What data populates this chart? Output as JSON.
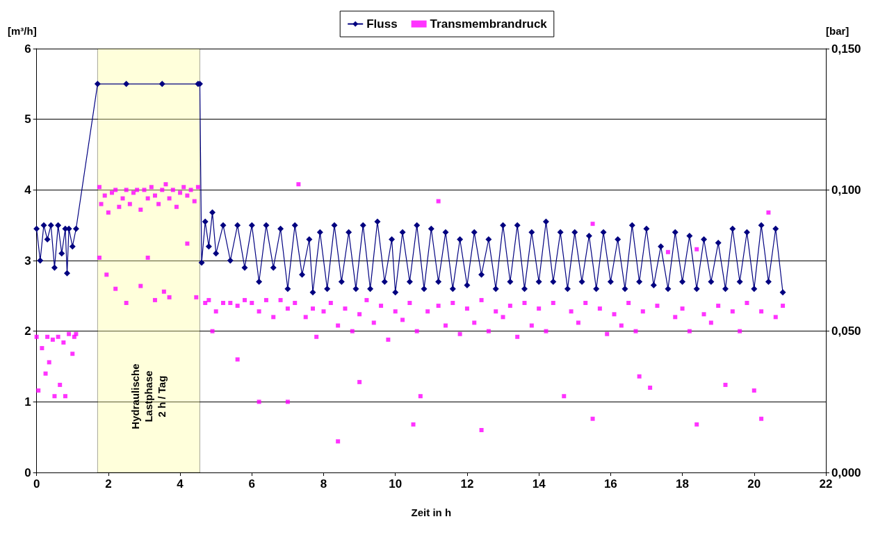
{
  "chart_data": {
    "type": "line",
    "xlabel": "Zeit in h",
    "ylabel": "[m³/h]",
    "y2label": "[bar]",
    "xlim": [
      0,
      22
    ],
    "xticks": [
      0,
      2,
      4,
      6,
      8,
      10,
      12,
      14,
      16,
      18,
      20,
      22
    ],
    "ylim": [
      0,
      6
    ],
    "yticks": [
      0,
      1,
      2,
      3,
      4,
      5,
      6
    ],
    "y2lim": [
      0,
      0.15
    ],
    "y2ticks": [
      {
        "value": 0,
        "label": "0,000"
      },
      {
        "value": 0.05,
        "label": "0,050"
      },
      {
        "value": 0.1,
        "label": "0,100"
      },
      {
        "value": 0.15,
        "label": "0,150"
      }
    ],
    "grid": "y",
    "legend": "top",
    "bands": [
      {
        "axis": "x",
        "from": 1.7,
        "to": 4.55,
        "label": "Hydraulische\nLastphase\n2 h / Tag",
        "color": "#ffff99"
      }
    ],
    "series": [
      {
        "name": "Fluss",
        "color": "#000080",
        "marker": "diamond",
        "x": [
          0,
          0.1,
          0.2,
          0.3,
          0.4,
          0.5,
          0.6,
          0.7,
          0.8,
          0.85,
          0.9,
          1.0,
          1.1,
          1.7,
          2.5,
          3.5,
          4.5,
          4.55,
          4.6,
          4.7,
          4.8,
          4.9,
          5.0,
          5.2,
          5.4,
          5.6,
          5.8,
          6.0,
          6.2,
          6.4,
          6.6,
          6.8,
          7.0,
          7.2,
          7.4,
          7.6,
          7.7,
          7.9,
          8.1,
          8.3,
          8.5,
          8.7,
          8.9,
          9.1,
          9.3,
          9.5,
          9.7,
          9.9,
          10.0,
          10.2,
          10.4,
          10.6,
          10.8,
          11.0,
          11.2,
          11.4,
          11.6,
          11.8,
          12.0,
          12.2,
          12.4,
          12.6,
          12.8,
          13.0,
          13.2,
          13.4,
          13.6,
          13.8,
          14.0,
          14.2,
          14.4,
          14.6,
          14.8,
          15.0,
          15.2,
          15.4,
          15.6,
          15.8,
          16.0,
          16.2,
          16.4,
          16.6,
          16.8,
          17.0,
          17.2,
          17.4,
          17.6,
          17.8,
          18.0,
          18.2,
          18.4,
          18.6,
          18.8,
          19.0,
          19.2,
          19.4,
          19.6,
          19.8,
          20.0,
          20.2,
          20.4,
          20.6,
          20.8
        ],
        "values": [
          3.45,
          3.0,
          3.5,
          3.3,
          3.5,
          2.9,
          3.5,
          3.1,
          3.45,
          2.82,
          3.45,
          3.2,
          3.45,
          5.5,
          5.5,
          5.5,
          5.5,
          5.5,
          2.97,
          3.55,
          3.2,
          3.68,
          3.1,
          3.5,
          3.0,
          3.5,
          2.9,
          3.5,
          2.7,
          3.5,
          2.9,
          3.45,
          2.6,
          3.5,
          2.8,
          3.3,
          2.55,
          3.4,
          2.6,
          3.5,
          2.7,
          3.4,
          2.6,
          3.5,
          2.6,
          3.55,
          2.7,
          3.3,
          2.55,
          3.4,
          2.7,
          3.5,
          2.6,
          3.45,
          2.7,
          3.4,
          2.6,
          3.3,
          2.65,
          3.4,
          2.8,
          3.3,
          2.6,
          3.5,
          2.7,
          3.5,
          2.6,
          3.4,
          2.7,
          3.55,
          2.7,
          3.4,
          2.6,
          3.4,
          2.7,
          3.35,
          2.6,
          3.4,
          2.7,
          3.3,
          2.6,
          3.5,
          2.7,
          3.45,
          2.65,
          3.2,
          2.6,
          3.4,
          2.7,
          3.35,
          2.6,
          3.3,
          2.7,
          3.25,
          2.6,
          3.45,
          2.7,
          3.4,
          2.6,
          3.5,
          2.7,
          3.45,
          2.55
        ]
      },
      {
        "name": "Transmembrandruck",
        "type": "scatter",
        "axis": "y2",
        "color": "#ff00ff",
        "marker": "square",
        "x": [
          0,
          0.05,
          0.15,
          0.25,
          0.3,
          0.35,
          0.45,
          0.5,
          0.6,
          0.65,
          0.75,
          0.8,
          0.9,
          1.0,
          1.05,
          1.1,
          1.75,
          1.8,
          1.9,
          2.0,
          2.1,
          2.2,
          2.3,
          2.4,
          2.5,
          2.6,
          2.7,
          2.8,
          2.9,
          3.0,
          3.1,
          3.2,
          3.3,
          3.4,
          3.5,
          3.6,
          3.7,
          3.8,
          3.9,
          4.0,
          4.1,
          4.2,
          4.3,
          4.4,
          4.5,
          1.75,
          1.95,
          2.2,
          2.5,
          2.9,
          3.1,
          3.3,
          3.55,
          3.7,
          4.2,
          4.45,
          4.7,
          4.8,
          5.0,
          5.2,
          5.4,
          5.6,
          5.8,
          6.0,
          6.2,
          6.4,
          6.6,
          6.8,
          7.0,
          7.2,
          7.3,
          7.5,
          7.7,
          7.8,
          8.0,
          8.2,
          8.4,
          8.6,
          8.8,
          9.0,
          9.2,
          9.4,
          9.6,
          9.8,
          10.0,
          10.2,
          10.4,
          10.6,
          10.7,
          10.9,
          11.2,
          11.4,
          11.6,
          11.8,
          12.0,
          12.2,
          12.4,
          12.6,
          12.8,
          13.0,
          13.2,
          13.4,
          13.6,
          13.8,
          14.0,
          14.2,
          14.4,
          14.7,
          14.9,
          15.1,
          15.3,
          15.5,
          15.7,
          15.9,
          16.1,
          16.3,
          16.5,
          16.7,
          16.9,
          17.1,
          17.3,
          17.6,
          17.8,
          18.0,
          18.2,
          18.4,
          18.6,
          18.8,
          19.0,
          19.2,
          19.4,
          19.6,
          19.8,
          20.0,
          20.2,
          20.4,
          20.6,
          20.8,
          4.9,
          5.6,
          6.2,
          7.0,
          8.4,
          9.0,
          11.2,
          12.4,
          15.5,
          18.4,
          20.2,
          10.5,
          16.8
        ],
        "values": [
          0.048,
          0.029,
          0.044,
          0.035,
          0.048,
          0.039,
          0.047,
          0.027,
          0.048,
          0.031,
          0.046,
          0.027,
          0.049,
          0.042,
          0.048,
          0.049,
          0.101,
          0.095,
          0.098,
          0.092,
          0.099,
          0.1,
          0.094,
          0.097,
          0.1,
          0.095,
          0.099,
          0.1,
          0.093,
          0.1,
          0.097,
          0.101,
          0.098,
          0.095,
          0.1,
          0.102,
          0.097,
          0.1,
          0.094,
          0.099,
          0.101,
          0.098,
          0.1,
          0.096,
          0.101,
          0.076,
          0.07,
          0.065,
          0.06,
          0.066,
          0.076,
          0.061,
          0.064,
          0.062,
          0.081,
          0.062,
          0.06,
          0.061,
          0.057,
          0.06,
          0.06,
          0.059,
          0.061,
          0.06,
          0.057,
          0.061,
          0.055,
          0.061,
          0.058,
          0.06,
          0.102,
          0.055,
          0.058,
          0.048,
          0.057,
          0.06,
          0.052,
          0.058,
          0.05,
          0.056,
          0.061,
          0.053,
          0.059,
          0.047,
          0.057,
          0.054,
          0.06,
          0.05,
          0.027,
          0.057,
          0.096,
          0.052,
          0.06,
          0.049,
          0.058,
          0.053,
          0.061,
          0.05,
          0.057,
          0.055,
          0.059,
          0.048,
          0.06,
          0.052,
          0.058,
          0.05,
          0.06,
          0.027,
          0.057,
          0.053,
          0.06,
          0.019,
          0.058,
          0.049,
          0.056,
          0.052,
          0.06,
          0.05,
          0.057,
          0.03,
          0.059,
          0.078,
          0.055,
          0.058,
          0.05,
          0.017,
          0.056,
          0.053,
          0.059,
          0.031,
          0.057,
          0.05,
          0.06,
          0.029,
          0.057,
          0.092,
          0.055,
          0.059,
          0.05,
          0.04,
          0.025,
          0.025,
          0.011,
          0.032,
          0.059,
          0.015,
          0.088,
          0.079,
          0.019,
          0.017,
          0.034
        ]
      }
    ]
  }
}
